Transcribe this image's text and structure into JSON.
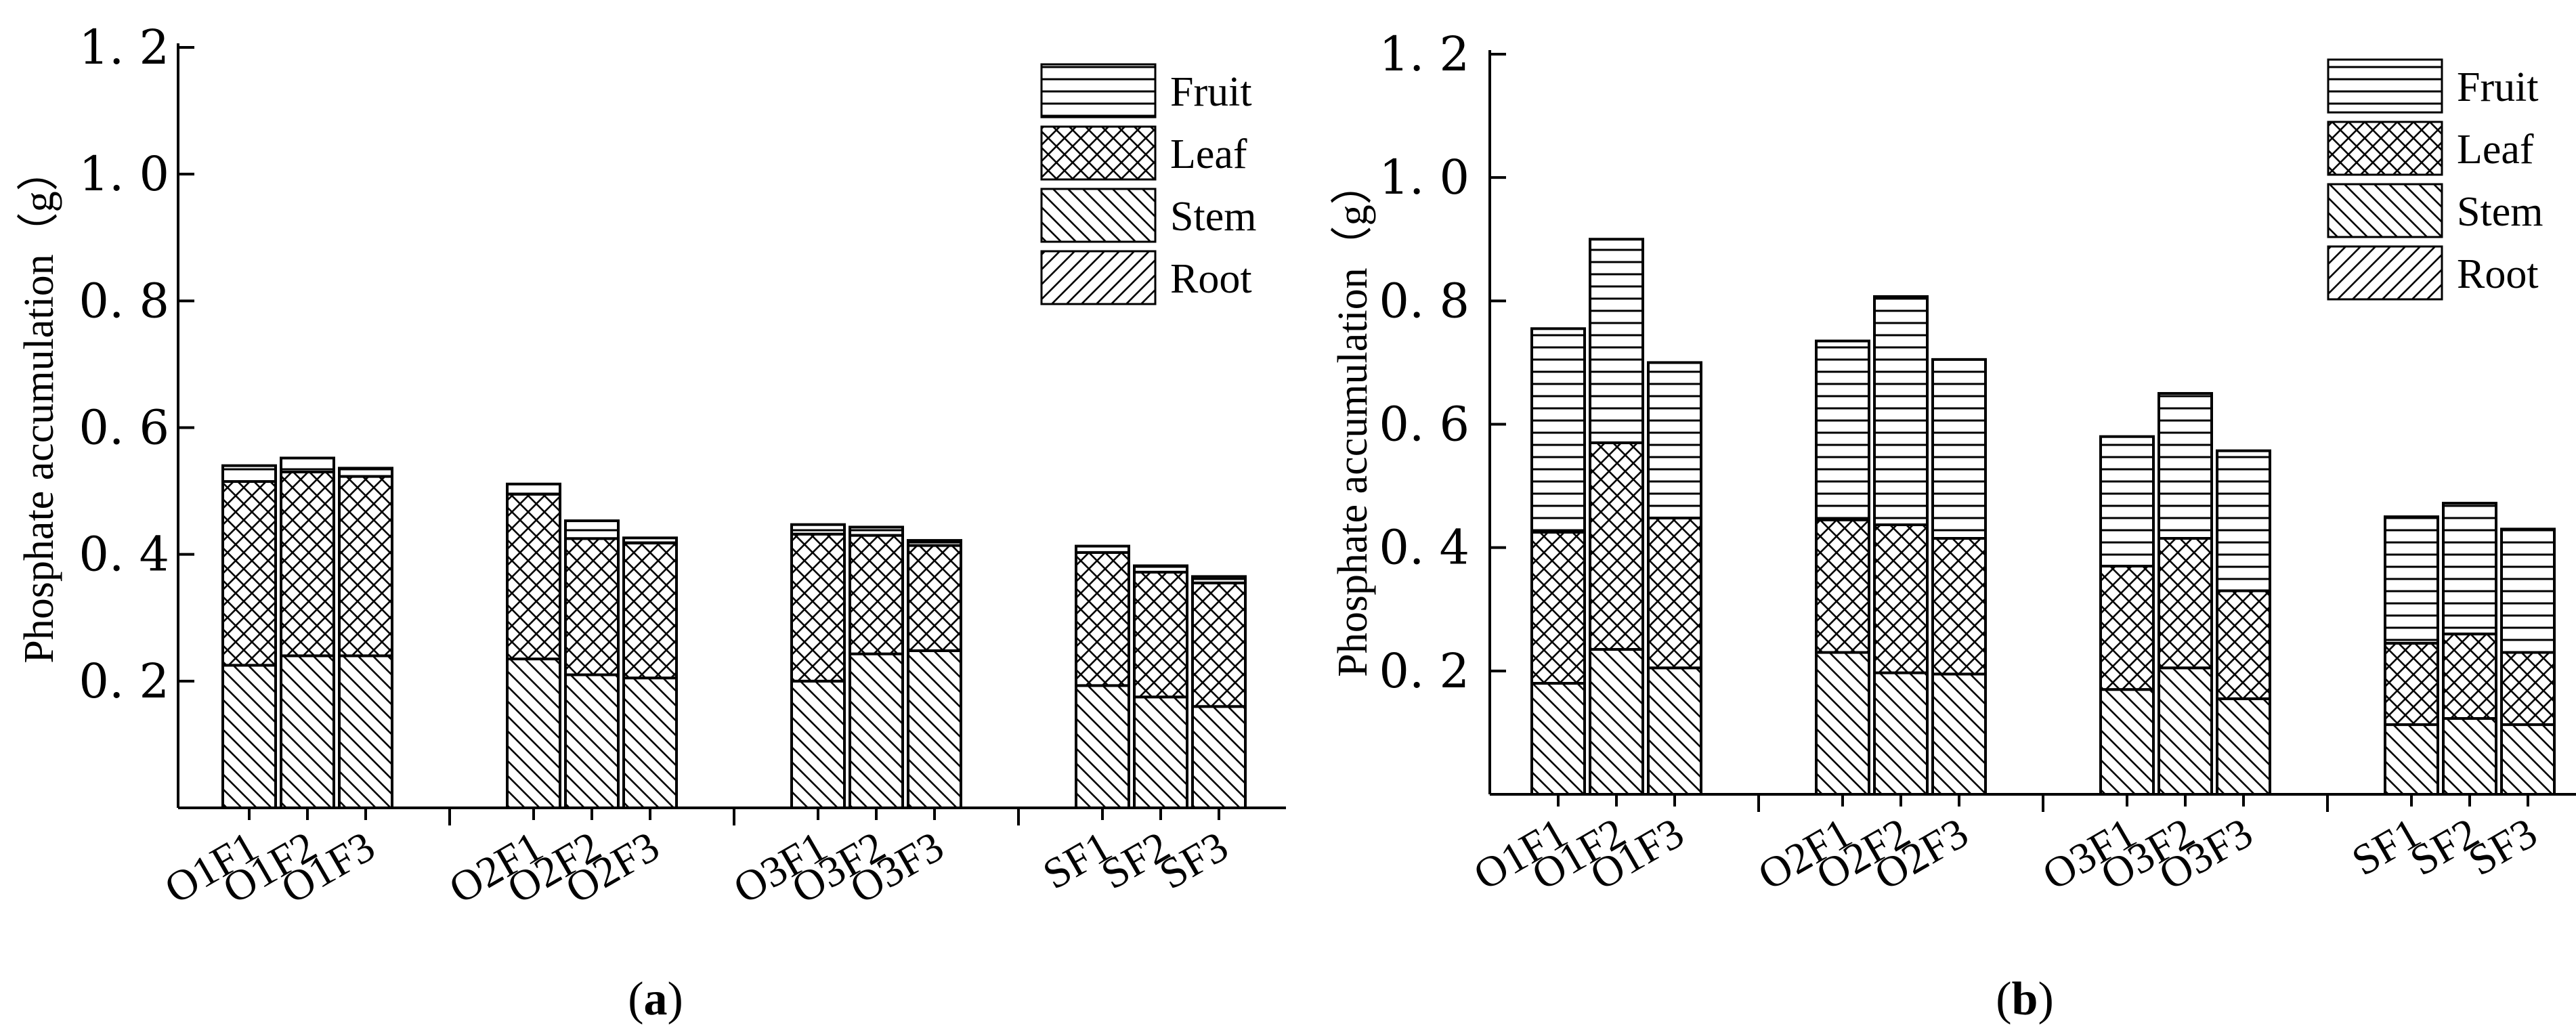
{
  "chart_data": [
    {
      "panel": "a",
      "type": "bar",
      "stacked": true,
      "caption_open": "(",
      "caption_letter": "a",
      "caption_close": ")",
      "ylabel": "Phosphate accumulation（g）",
      "ylim": [
        0,
        1.2
      ],
      "yticks": [
        "0. 2",
        "0. 4",
        "0. 6",
        "0. 8",
        "1. 0",
        "1. 2"
      ],
      "ytick_values": [
        0.2,
        0.4,
        0.6,
        0.8,
        1.0,
        1.2
      ],
      "legend_position": "top-right",
      "groups": [
        [
          "O1F1",
          "O1F2",
          "O1F3"
        ],
        [
          "O2F1",
          "O2F2",
          "O2F3"
        ],
        [
          "O3F1",
          "O3F2",
          "O3F3"
        ],
        [
          "SF1",
          "SF2",
          "SF3"
        ]
      ],
      "legend": [
        "Fruit",
        "Leaf",
        "Stem",
        "Root"
      ],
      "series": [
        {
          "name": "Root",
          "values": [
            0,
            0,
            0,
            0,
            0,
            0,
            0,
            0,
            0,
            0,
            0,
            0
          ]
        },
        {
          "name": "Stem",
          "values": [
            0.225,
            0.24,
            0.24,
            0.235,
            0.21,
            0.205,
            0.2,
            0.243,
            0.248,
            0.193,
            0.175,
            0.16
          ]
        },
        {
          "name": "Leaf",
          "values": [
            0.29,
            0.29,
            0.283,
            0.26,
            0.215,
            0.213,
            0.232,
            0.187,
            0.166,
            0.21,
            0.197,
            0.195
          ]
        },
        {
          "name": "Fruit",
          "values": [
            0.025,
            0.022,
            0.013,
            0.016,
            0.028,
            0.008,
            0.015,
            0.013,
            0.008,
            0.01,
            0.01,
            0.01
          ]
        }
      ]
    },
    {
      "panel": "b",
      "type": "bar",
      "stacked": true,
      "caption_open": "(",
      "caption_letter": "b",
      "caption_close": ")",
      "ylabel": "Phosphate accumulation（g）",
      "ylim": [
        0,
        1.2
      ],
      "yticks": [
        "0. 2",
        "0. 4",
        "0. 6",
        "0. 8",
        "1. 0",
        "1. 2"
      ],
      "ytick_values": [
        0.2,
        0.4,
        0.6,
        0.8,
        1.0,
        1.2
      ],
      "legend_position": "top-right",
      "groups": [
        [
          "O1F1",
          "O1F2",
          "O1F3"
        ],
        [
          "O2F1",
          "O2F2",
          "O2F3"
        ],
        [
          "O3F1",
          "O3F2",
          "O3F3"
        ],
        [
          "SF1",
          "SF2",
          "SF3"
        ]
      ],
      "legend": [
        "Fruit",
        "Leaf",
        "Stem",
        "Root"
      ],
      "series": [
        {
          "name": "Root",
          "values": [
            0,
            0,
            0,
            0,
            0,
            0,
            0,
            0,
            0,
            0,
            0,
            0
          ]
        },
        {
          "name": "Stem",
          "values": [
            0.18,
            0.235,
            0.205,
            0.23,
            0.197,
            0.195,
            0.17,
            0.205,
            0.155,
            0.113,
            0.123,
            0.113
          ]
        },
        {
          "name": "Leaf",
          "values": [
            0.245,
            0.335,
            0.243,
            0.215,
            0.24,
            0.22,
            0.2,
            0.21,
            0.175,
            0.132,
            0.137,
            0.117
          ]
        },
        {
          "name": "Fruit",
          "values": [
            0.33,
            0.33,
            0.252,
            0.29,
            0.37,
            0.29,
            0.21,
            0.235,
            0.227,
            0.205,
            0.212,
            0.2
          ]
        }
      ]
    }
  ]
}
